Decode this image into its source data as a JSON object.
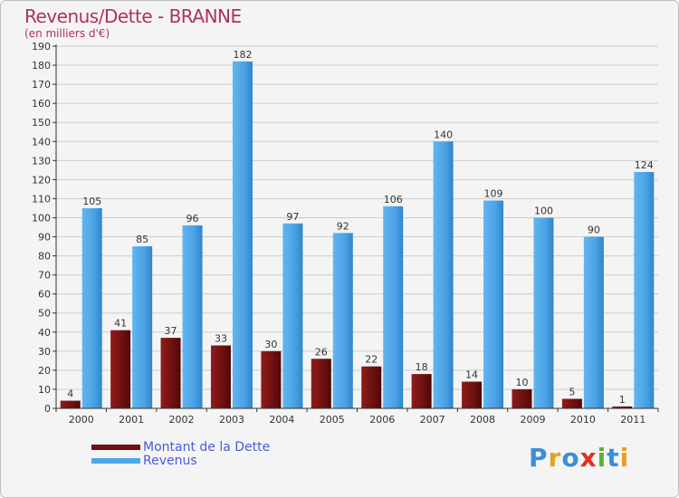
{
  "header": {
    "title": "Revenus/Dette - BRANNE",
    "unit": "(en milliers d'€)"
  },
  "legend": {
    "debt_label": "Montant de la Dette",
    "revenue_label": "Revenus"
  },
  "logo": {
    "text": "Proxiti",
    "letters": [
      "P",
      "r",
      "o",
      "x",
      "i",
      "t",
      "i"
    ],
    "colors": [
      "#3a8fd8",
      "#e8a020",
      "#3a8fd8",
      "#e03020",
      "#60b030",
      "#3a8fd8",
      "#e8a020"
    ]
  },
  "colors": {
    "debt": "#7a1414",
    "revenue": "#4da6e8",
    "axis": "#333333",
    "grid": "#cccccc"
  },
  "chart_data": {
    "type": "bar",
    "categories": [
      "2000",
      "2001",
      "2002",
      "2003",
      "2004",
      "2005",
      "2006",
      "2007",
      "2008",
      "2009",
      "2010",
      "2011"
    ],
    "series": [
      {
        "name": "Montant de la Dette",
        "values": [
          4,
          41,
          37,
          33,
          30,
          26,
          22,
          18,
          14,
          10,
          5,
          1
        ]
      },
      {
        "name": "Revenus",
        "values": [
          105,
          85,
          96,
          182,
          97,
          92,
          106,
          140,
          109,
          100,
          90,
          124
        ]
      }
    ],
    "title": "Revenus/Dette - BRANNE",
    "ylabel": "(en milliers d'€)",
    "ylim": [
      0,
      190
    ],
    "yticks": [
      0,
      10,
      20,
      30,
      40,
      50,
      60,
      70,
      80,
      90,
      100,
      110,
      120,
      130,
      140,
      150,
      160,
      170,
      180,
      190
    ],
    "grid": true,
    "legend_position": "bottom-left"
  }
}
